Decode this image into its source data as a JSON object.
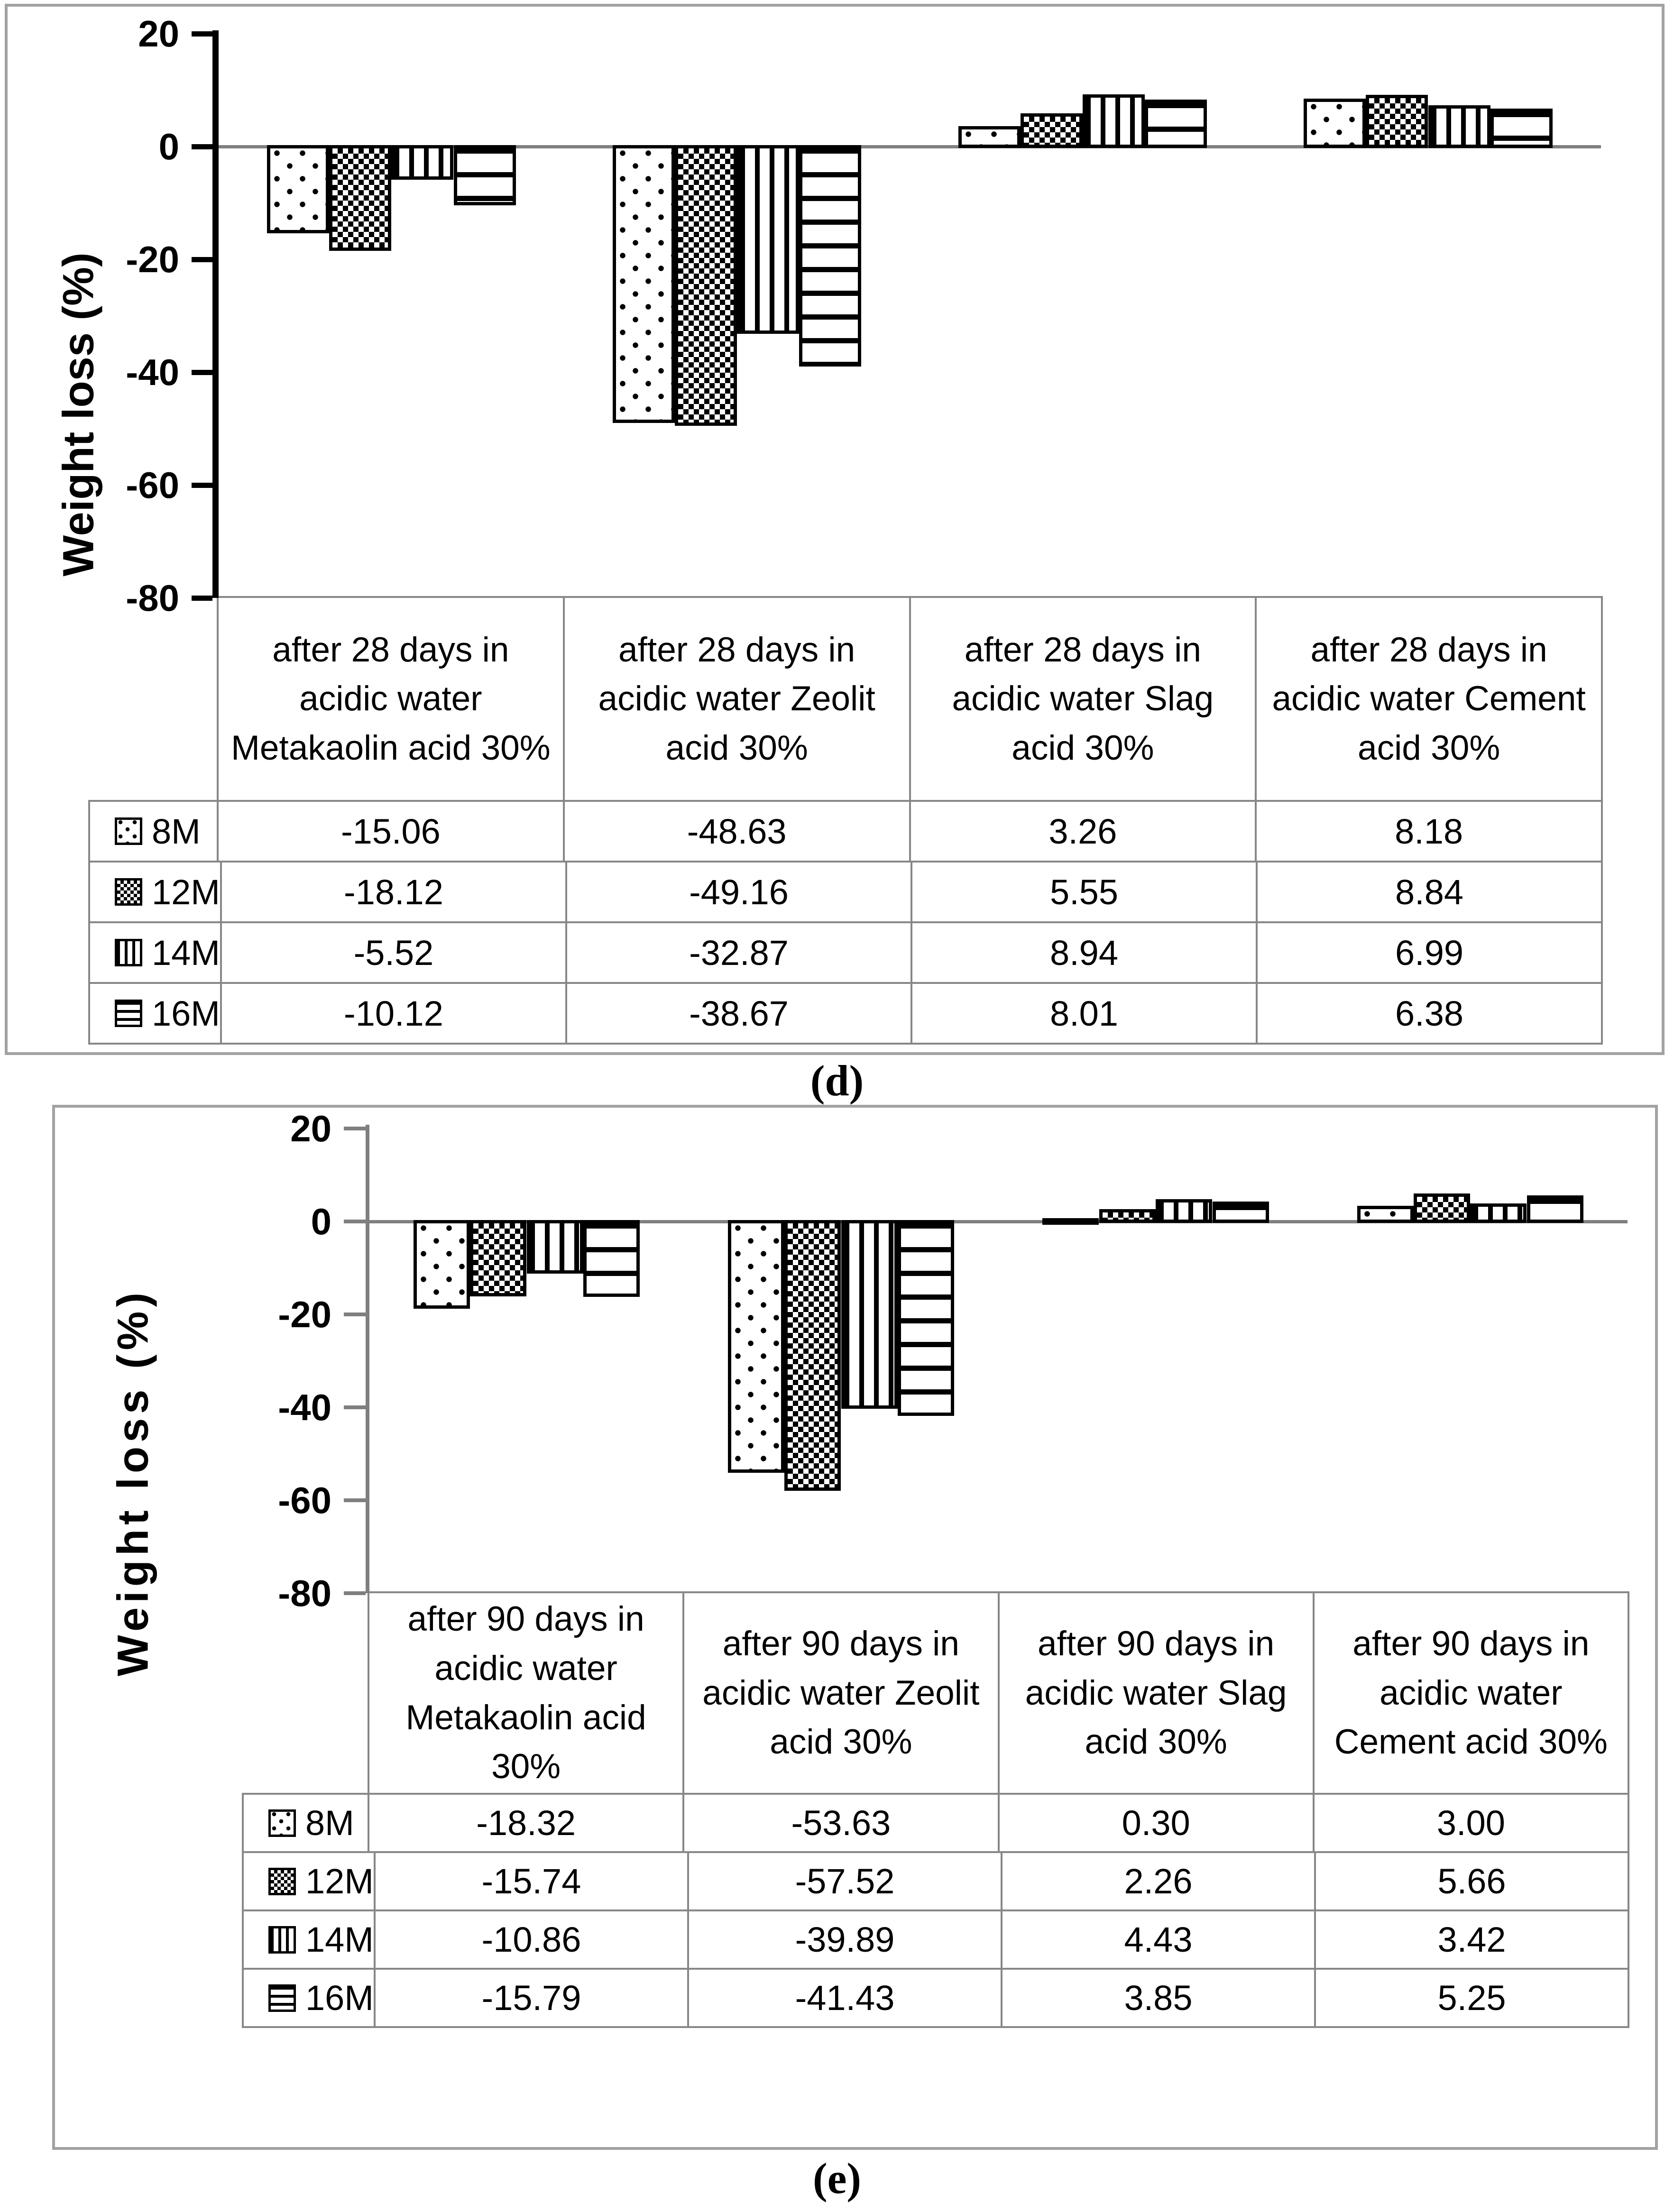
{
  "figure": {
    "captions": [
      "(d)",
      "(e)"
    ]
  },
  "chart_data": [
    {
      "id": "d",
      "type": "bar",
      "caption": "(d)",
      "title": "",
      "xlabel": "",
      "ylabel": "Weight loss (%)",
      "ylim": [
        -80,
        20
      ],
      "yticks": [
        20,
        0,
        -20,
        -40,
        -60,
        -80
      ],
      "grid": "zero-baseline-only",
      "legend_position": "table-rows-left",
      "categories": [
        "after 28 days in acidic water Metakaolin acid 30%",
        "after 28 days in acidic water Zeolit acid 30%",
        "after 28 days in acidic water Slag acid 30%",
        "after 28 days in acidic water Cement acid 30%"
      ],
      "series": [
        {
          "name": "8M",
          "pattern": "dots",
          "values": [
            -15.06,
            -48.63,
            3.26,
            8.18
          ]
        },
        {
          "name": "12M",
          "pattern": "checker",
          "values": [
            -18.12,
            -49.16,
            5.55,
            8.84
          ]
        },
        {
          "name": "14M",
          "pattern": "vlines",
          "values": [
            -5.52,
            -32.87,
            8.94,
            6.99
          ]
        },
        {
          "name": "16M",
          "pattern": "hlines",
          "values": [
            -10.12,
            -38.67,
            8.01,
            6.38
          ]
        }
      ]
    },
    {
      "id": "e",
      "type": "bar",
      "caption": "(e)",
      "title": "",
      "xlabel": "",
      "ylabel": "Weight loss (%)",
      "ylim": [
        -80,
        20
      ],
      "yticks": [
        20,
        0,
        -20,
        -40,
        -60,
        -80
      ],
      "grid": "zero-baseline-only",
      "legend_position": "table-rows-left",
      "categories": [
        "after 90 days in acidic water Metakaolin acid 30%",
        "after 90 days in acidic water Zeolit acid 30%",
        "after 90 days in acidic water Slag acid 30%",
        "after 90 days in acidic water Cement acid 30%"
      ],
      "series": [
        {
          "name": "8M",
          "pattern": "dots",
          "values": [
            -18.32,
            -53.63,
            0.3,
            3.0
          ]
        },
        {
          "name": "12M",
          "pattern": "checker",
          "values": [
            -15.74,
            -57.52,
            2.26,
            5.66
          ]
        },
        {
          "name": "14M",
          "pattern": "vlines",
          "values": [
            -10.86,
            -39.89,
            4.43,
            3.42
          ]
        },
        {
          "name": "16M",
          "pattern": "hlines",
          "values": [
            -15.79,
            -41.43,
            3.85,
            5.25
          ]
        }
      ]
    }
  ]
}
